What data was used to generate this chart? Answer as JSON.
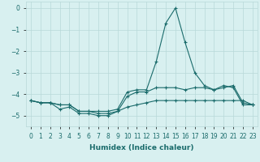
{
  "x": [
    0,
    1,
    2,
    3,
    4,
    5,
    6,
    7,
    8,
    9,
    10,
    11,
    12,
    13,
    14,
    15,
    16,
    17,
    18,
    19,
    20,
    21,
    22,
    23
  ],
  "line1": [
    -4.3,
    -4.4,
    -4.4,
    -4.5,
    -4.5,
    -4.8,
    -4.8,
    -4.8,
    -4.8,
    -4.7,
    -3.9,
    -3.8,
    -3.8,
    -2.5,
    -0.7,
    0.0,
    -1.6,
    -3.0,
    -3.6,
    -3.8,
    -3.7,
    -3.6,
    -4.4,
    -4.5
  ],
  "line2": [
    -4.3,
    -4.4,
    -4.4,
    -4.7,
    -4.6,
    -4.9,
    -4.9,
    -5.0,
    -5.0,
    -4.8,
    -4.6,
    -4.5,
    -4.4,
    -4.3,
    -4.3,
    -4.3,
    -4.3,
    -4.3,
    -4.3,
    -4.3,
    -4.3,
    -4.3,
    -4.3,
    -4.5
  ],
  "line3": [
    -4.3,
    -4.4,
    -4.4,
    -4.5,
    -4.5,
    -4.8,
    -4.8,
    -4.9,
    -4.9,
    -4.8,
    -4.1,
    -3.9,
    -3.9,
    -3.7,
    -3.7,
    -3.7,
    -3.8,
    -3.7,
    -3.7,
    -3.8,
    -3.6,
    -3.7,
    -4.5,
    -4.5
  ],
  "line_color": "#1a6b6b",
  "bg_color": "#d8f0f0",
  "grid_color": "#b8d8d8",
  "xlabel": "Humidex (Indice chaleur)",
  "xlim": [
    -0.5,
    23.5
  ],
  "ylim": [
    -5.5,
    0.3
  ],
  "yticks": [
    0,
    -1,
    -2,
    -3,
    -4,
    -5
  ],
  "xtick_labels": [
    "0",
    "1",
    "2",
    "3",
    "4",
    "5",
    "6",
    "7",
    "8",
    "9",
    "10",
    "11",
    "12",
    "13",
    "14",
    "15",
    "16",
    "17",
    "18",
    "19",
    "20",
    "21",
    "22",
    "23"
  ],
  "label_fontsize": 6.5,
  "tick_fontsize": 5.5
}
